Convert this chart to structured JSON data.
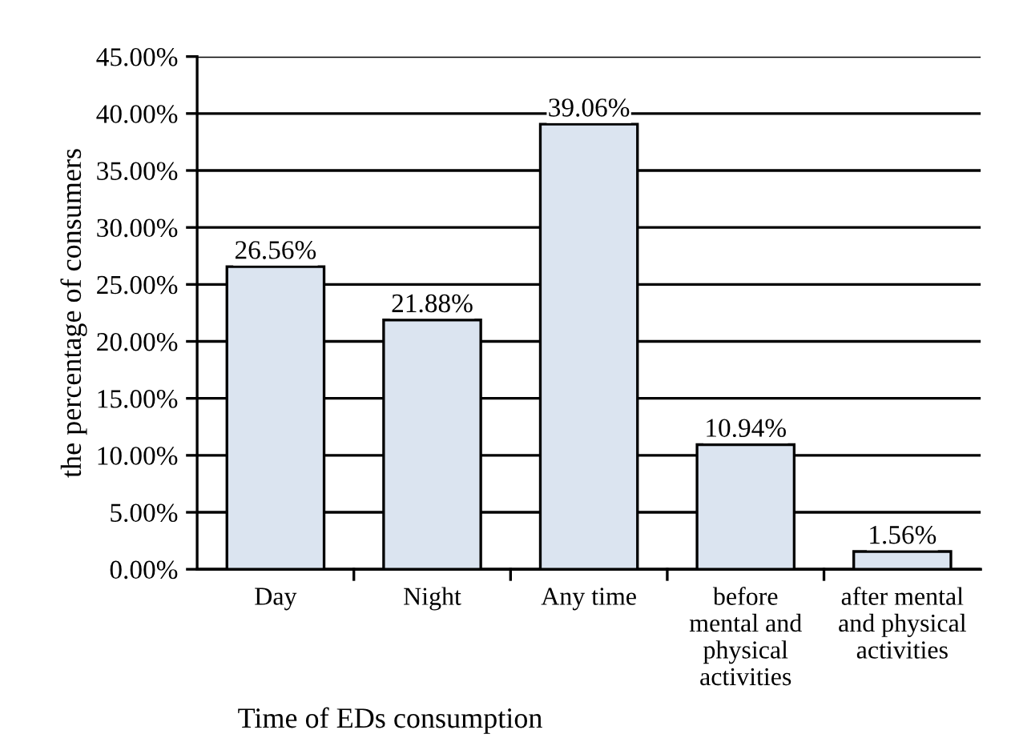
{
  "chart_data": {
    "type": "bar",
    "xlabel": "Time of EDs consumption",
    "ylabel": "the percentage of consumers",
    "categories": [
      "Day",
      "Night",
      "Any time",
      "before\nmental and\nphysical\nactivities",
      "after mental\nand physical\nactivities"
    ],
    "values": [
      26.56,
      21.88,
      39.06,
      10.94,
      1.56
    ],
    "value_labels": [
      "26.56%",
      "21.88%",
      "39.06%",
      "10.94%",
      "1.56%"
    ],
    "color": "#dbe4f0",
    "ylim": [
      0,
      45
    ],
    "yticks": [
      {
        "value": 0,
        "label": "0.00%"
      },
      {
        "value": 5,
        "label": "5.00%"
      },
      {
        "value": 10,
        "label": "10.00%"
      },
      {
        "value": 15,
        "label": "15.00%"
      },
      {
        "value": 20,
        "label": "20.00%"
      },
      {
        "value": 25,
        "label": "25.00%"
      },
      {
        "value": 30,
        "label": "30.00%"
      },
      {
        "value": 35,
        "label": "35.00%"
      },
      {
        "value": 40,
        "label": "40.00%"
      },
      {
        "value": 45,
        "label": "45.00%"
      }
    ],
    "grid": "y"
  }
}
